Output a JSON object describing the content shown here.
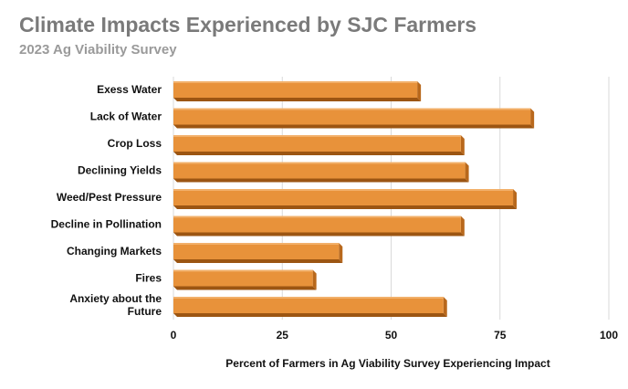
{
  "header": {
    "title": "Climate Impacts Experienced by SJC Farmers",
    "subtitle": "2023 Ag Viability Survey"
  },
  "colors": {
    "bar_front": "#e8923a",
    "bar_top": "#f2b06a",
    "bar_side": "#b8681c",
    "bar_bottom": "#9c5512",
    "grid": "#d9d9d9"
  },
  "chart_data": {
    "type": "bar",
    "orientation": "horizontal",
    "title": "Climate Impacts Experienced by SJC Farmers",
    "subtitle": "2023 Ag Viability Survey",
    "categories": [
      [
        "Exess Water"
      ],
      [
        "Lack of Water"
      ],
      [
        "Crop Loss"
      ],
      [
        "Declining Yields"
      ],
      [
        "Weed/Pest Pressure"
      ],
      [
        "Decline in Pollination"
      ],
      [
        "Changing Markets"
      ],
      [
        "Fires"
      ],
      [
        "Anxiety about the",
        "Future"
      ]
    ],
    "values": [
      56,
      82,
      66,
      67,
      78,
      66,
      38,
      32,
      62
    ],
    "xlabel": "Percent of Farmers in Ag Viability Survey Experiencing Impact",
    "ylabel": "",
    "xlim": [
      0,
      100
    ],
    "xticks": [
      "0",
      "25",
      "50",
      "75",
      "100"
    ],
    "tick_values": [
      0,
      25,
      50,
      75,
      100
    ],
    "grid": true,
    "legend": "none"
  }
}
